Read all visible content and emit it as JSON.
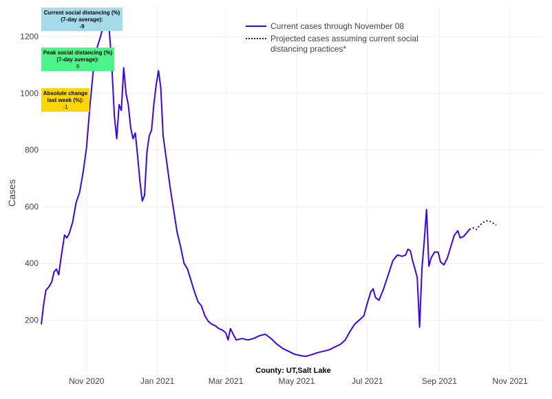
{
  "chart_data": {
    "type": "line",
    "ylabel": "Cases",
    "caption": "County: UT,Salt Lake",
    "ylim": [
      65,
      1305
    ],
    "yticks": [
      200,
      400,
      600,
      800,
      1000,
      1200
    ],
    "xticks": [
      {
        "label": "Nov 2020",
        "date": "2020-11-01"
      },
      {
        "label": "Jan 2021",
        "date": "2021-01-01"
      },
      {
        "label": "Mar 2021",
        "date": "2021-03-01"
      },
      {
        "label": "May 2021",
        "date": "2021-05-01"
      },
      {
        "label": "Jul 2021",
        "date": "2021-07-01"
      },
      {
        "label": "Sep 2021",
        "date": "2021-09-01"
      },
      {
        "label": "Nov 2021",
        "date": "2021-11-01"
      }
    ],
    "xrange": [
      "2020-09-23",
      "2021-11-30"
    ],
    "series": [
      {
        "name": "Current cases through November 08",
        "style": "solid",
        "color": "#3a00ff",
        "points": [
          [
            "2020-09-23",
            185
          ],
          [
            "2020-09-25",
            255
          ],
          [
            "2020-09-27",
            305
          ],
          [
            "2020-09-30",
            320
          ],
          [
            "2020-10-02",
            335
          ],
          [
            "2020-10-04",
            370
          ],
          [
            "2020-10-06",
            380
          ],
          [
            "2020-10-08",
            360
          ],
          [
            "2020-10-10",
            420
          ],
          [
            "2020-10-13",
            500
          ],
          [
            "2020-10-15",
            490
          ],
          [
            "2020-10-17",
            505
          ],
          [
            "2020-10-20",
            545
          ],
          [
            "2020-10-23",
            615
          ],
          [
            "2020-10-26",
            650
          ],
          [
            "2020-10-29",
            720
          ],
          [
            "2020-11-01",
            810
          ],
          [
            "2020-11-04",
            960
          ],
          [
            "2020-11-07",
            1090
          ],
          [
            "2020-11-10",
            1160
          ],
          [
            "2020-11-13",
            1200
          ],
          [
            "2020-11-15",
            1230
          ],
          [
            "2020-11-17",
            1260
          ],
          [
            "2020-11-19",
            1300
          ],
          [
            "2020-11-21",
            1200
          ],
          [
            "2020-11-23",
            1080
          ],
          [
            "2020-11-25",
            920
          ],
          [
            "2020-11-27",
            840
          ],
          [
            "2020-11-29",
            960
          ],
          [
            "2020-12-01",
            940
          ],
          [
            "2020-12-03",
            1090
          ],
          [
            "2020-12-05",
            1000
          ],
          [
            "2020-12-07",
            960
          ],
          [
            "2020-12-09",
            880
          ],
          [
            "2020-12-11",
            840
          ],
          [
            "2020-12-13",
            860
          ],
          [
            "2020-12-15",
            780
          ],
          [
            "2020-12-17",
            690
          ],
          [
            "2020-12-19",
            620
          ],
          [
            "2020-12-21",
            640
          ],
          [
            "2020-12-23",
            790
          ],
          [
            "2020-12-25",
            850
          ],
          [
            "2020-12-27",
            870
          ],
          [
            "2020-12-29",
            960
          ],
          [
            "2020-12-31",
            1030
          ],
          [
            "2021-01-02",
            1080
          ],
          [
            "2021-01-04",
            1020
          ],
          [
            "2021-01-06",
            850
          ],
          [
            "2021-01-09",
            760
          ],
          [
            "2021-01-12",
            670
          ],
          [
            "2021-01-15",
            590
          ],
          [
            "2021-01-18",
            510
          ],
          [
            "2021-01-21",
            460
          ],
          [
            "2021-01-24",
            400
          ],
          [
            "2021-01-27",
            380
          ],
          [
            "2021-01-30",
            340
          ],
          [
            "2021-02-02",
            300
          ],
          [
            "2021-02-05",
            265
          ],
          [
            "2021-02-08",
            250
          ],
          [
            "2021-02-11",
            215
          ],
          [
            "2021-02-14",
            195
          ],
          [
            "2021-02-17",
            185
          ],
          [
            "2021-02-20",
            180
          ],
          [
            "2021-02-23",
            170
          ],
          [
            "2021-02-26",
            165
          ],
          [
            "2021-03-01",
            155
          ],
          [
            "2021-03-03",
            130
          ],
          [
            "2021-03-05",
            170
          ],
          [
            "2021-03-08",
            145
          ],
          [
            "2021-03-10",
            130
          ],
          [
            "2021-03-15",
            135
          ],
          [
            "2021-03-20",
            130
          ],
          [
            "2021-03-25",
            135
          ],
          [
            "2021-03-30",
            145
          ],
          [
            "2021-04-04",
            150
          ],
          [
            "2021-04-09",
            135
          ],
          [
            "2021-04-14",
            115
          ],
          [
            "2021-04-19",
            100
          ],
          [
            "2021-04-24",
            90
          ],
          [
            "2021-04-29",
            80
          ],
          [
            "2021-05-04",
            75
          ],
          [
            "2021-05-09",
            72
          ],
          [
            "2021-05-14",
            78
          ],
          [
            "2021-05-19",
            85
          ],
          [
            "2021-05-24",
            90
          ],
          [
            "2021-05-29",
            95
          ],
          [
            "2021-06-03",
            105
          ],
          [
            "2021-06-08",
            115
          ],
          [
            "2021-06-12",
            130
          ],
          [
            "2021-06-16",
            160
          ],
          [
            "2021-06-20",
            185
          ],
          [
            "2021-06-24",
            200
          ],
          [
            "2021-06-28",
            215
          ],
          [
            "2021-07-01",
            260
          ],
          [
            "2021-07-04",
            300
          ],
          [
            "2021-07-06",
            310
          ],
          [
            "2021-07-08",
            280
          ],
          [
            "2021-07-11",
            270
          ],
          [
            "2021-07-15",
            310
          ],
          [
            "2021-07-19",
            360
          ],
          [
            "2021-07-23",
            410
          ],
          [
            "2021-07-27",
            430
          ],
          [
            "2021-07-31",
            425
          ],
          [
            "2021-08-03",
            430
          ],
          [
            "2021-08-05",
            450
          ],
          [
            "2021-08-07",
            445
          ],
          [
            "2021-08-09",
            410
          ],
          [
            "2021-08-11",
            380
          ],
          [
            "2021-08-13",
            350
          ],
          [
            "2021-08-15",
            175
          ],
          [
            "2021-08-17",
            380
          ],
          [
            "2021-08-19",
            480
          ],
          [
            "2021-08-21",
            590
          ],
          [
            "2021-08-23",
            390
          ],
          [
            "2021-08-25",
            420
          ],
          [
            "2021-08-28",
            440
          ],
          [
            "2021-08-31",
            440
          ],
          [
            "2021-09-02",
            405
          ],
          [
            "2021-09-05",
            395
          ],
          [
            "2021-09-08",
            420
          ],
          [
            "2021-09-11",
            460
          ],
          [
            "2021-09-14",
            500
          ],
          [
            "2021-09-17",
            515
          ],
          [
            "2021-09-19",
            490
          ],
          [
            "2021-09-22",
            495
          ],
          [
            "2021-09-25",
            510
          ],
          [
            "2021-09-27",
            520
          ]
        ]
      },
      {
        "name": "Projected cases assuming current social distancing practices*",
        "style": "dotted",
        "color": "#1a0099",
        "points": [
          [
            "2021-09-27",
            520
          ],
          [
            "2021-09-30",
            525
          ],
          [
            "2021-10-03",
            520
          ],
          [
            "2021-10-06",
            535
          ],
          [
            "2021-10-09",
            545
          ],
          [
            "2021-10-12",
            550
          ],
          [
            "2021-10-15",
            548
          ],
          [
            "2021-10-18",
            540
          ],
          [
            "2021-10-20",
            535
          ]
        ]
      }
    ]
  },
  "annotations": [
    {
      "title": "Current social distancing (%) (7-day average):",
      "value": "-9",
      "color": "#a6dcea"
    },
    {
      "title": "Peak social distancing (%) (7-day average):",
      "value": "9",
      "color": "#4cf58a"
    },
    {
      "title": "Absolute change last week (%):",
      "value": "-1",
      "color": "#ffd700"
    }
  ]
}
